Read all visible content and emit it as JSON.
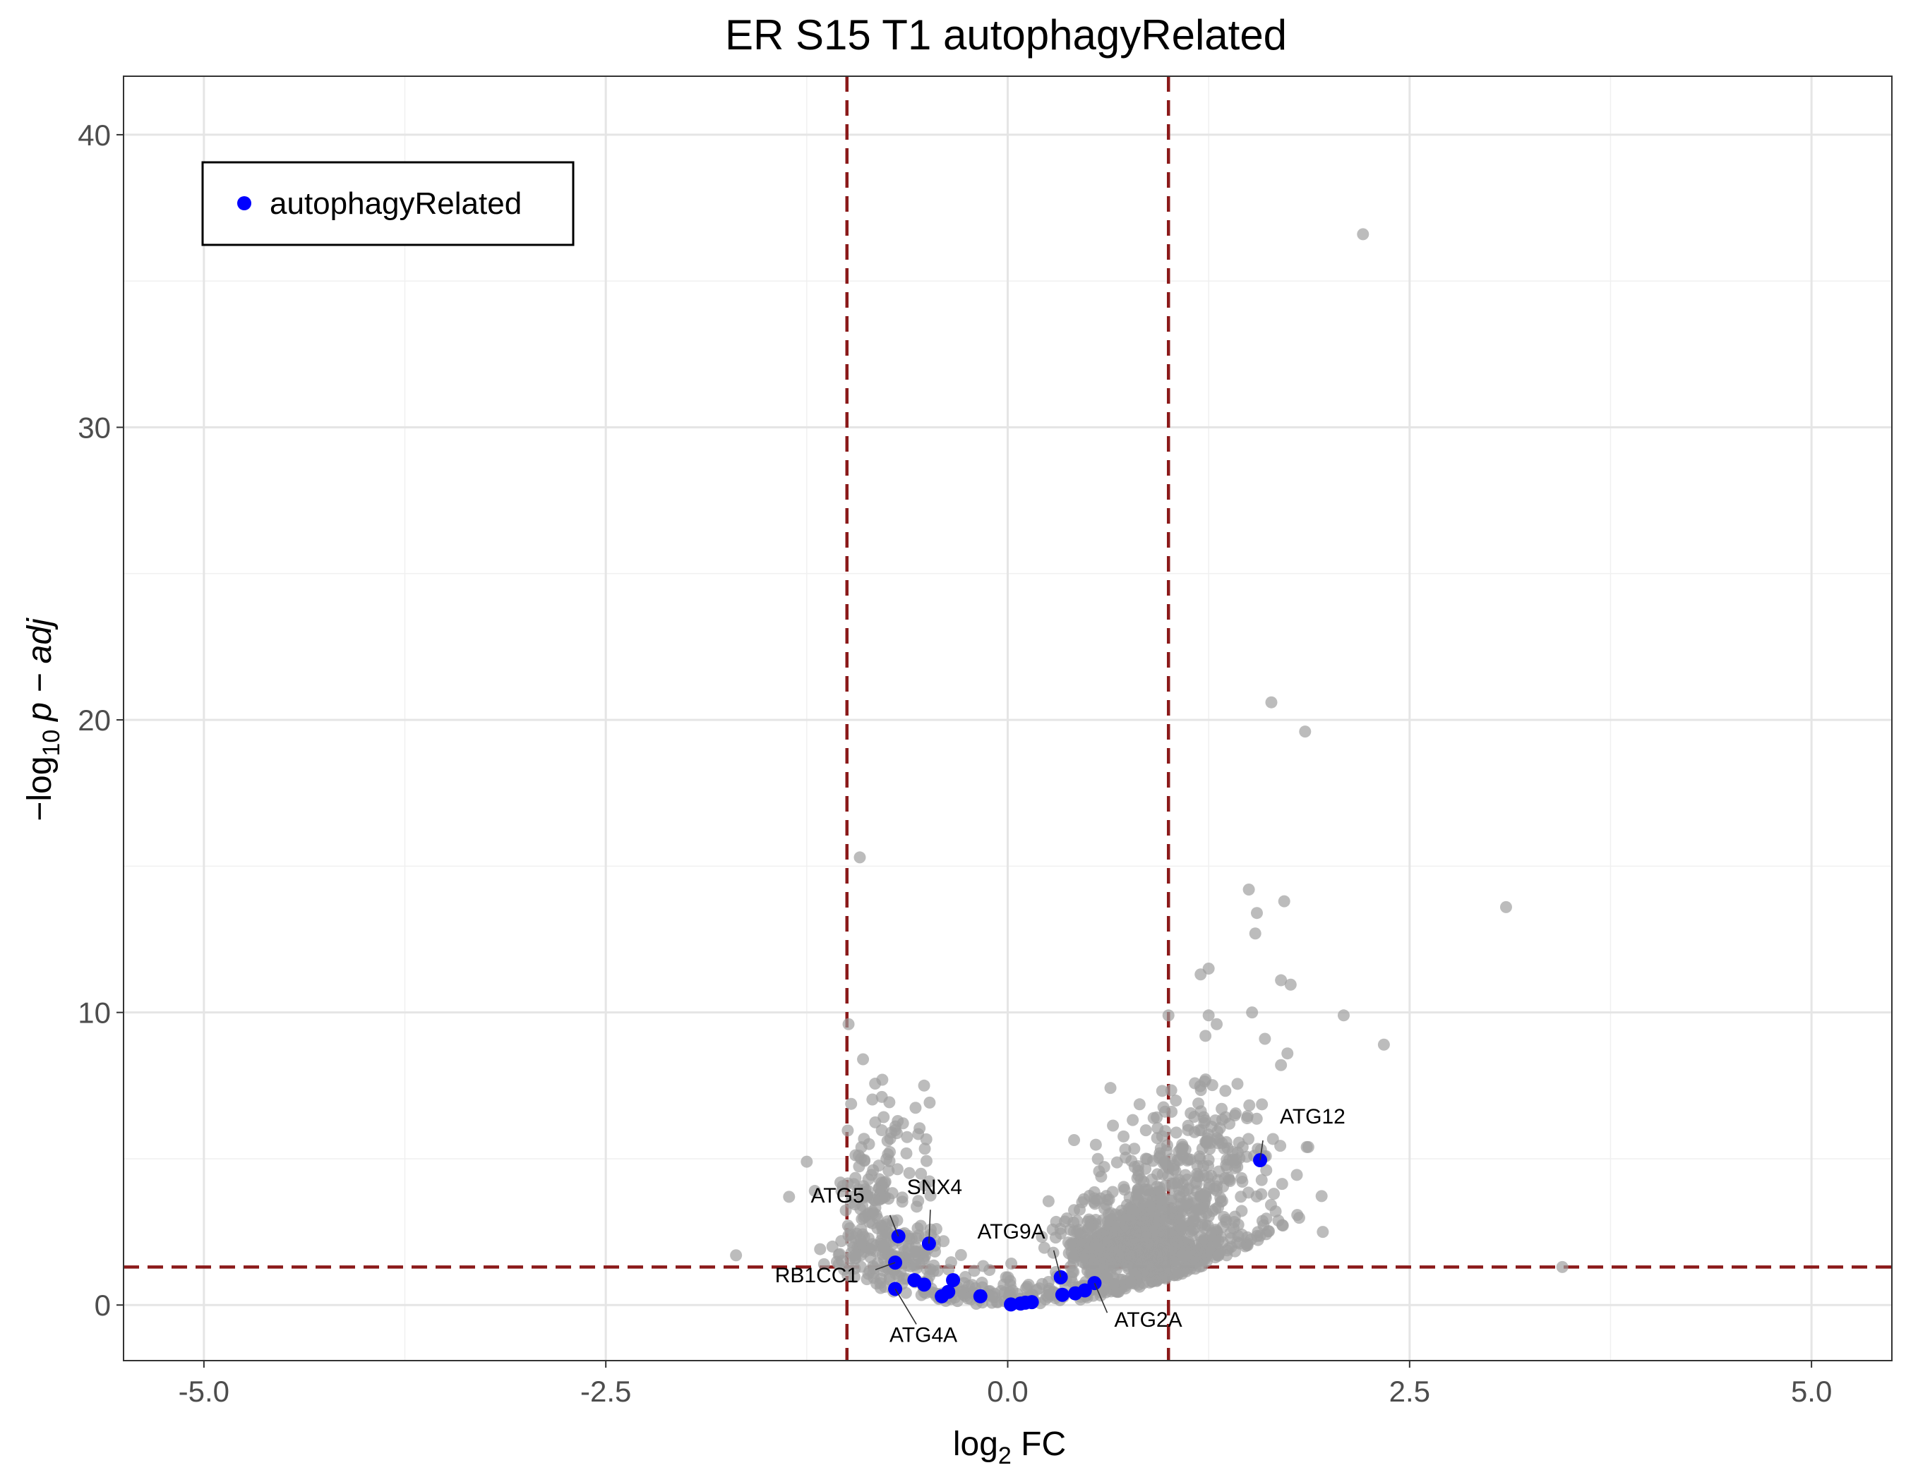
{
  "chart_data": {
    "type": "scatter",
    "title": "ER S15 T1 autophagyRelated",
    "xlabel": {
      "prefix": "log",
      "sub": "2",
      "suffix": " FC"
    },
    "ylabel": {
      "prefix": "−log",
      "sub": "10",
      "suffix": "p − adj"
    },
    "xlim": [
      -5.5,
      5.5
    ],
    "ylim": [
      -1.9,
      42
    ],
    "x_ticks": [
      -5.0,
      -2.5,
      0.0,
      2.5,
      5.0
    ],
    "x_tick_labels": [
      "-5.0",
      "-2.5",
      "0.0",
      "2.5",
      "5.0"
    ],
    "y_ticks": [
      0,
      10,
      20,
      30,
      40
    ],
    "y_tick_labels": [
      "0",
      "10",
      "20",
      "30",
      "40"
    ],
    "grid": true,
    "thresholds": {
      "fc_left": -1,
      "fc_right": 1,
      "padj_neglog10": 1.3,
      "color": "#8b1a1a"
    },
    "legend": {
      "position": "top-left",
      "entries": [
        "autophagyRelated"
      ]
    },
    "colors": {
      "background_genes": "#a0a0a0",
      "highlight": "#0000ff"
    },
    "background_outliers": [
      [
        2.21,
        36.6
      ],
      [
        1.64,
        20.6
      ],
      [
        1.85,
        19.6
      ],
      [
        -0.92,
        15.3
      ],
      [
        3.1,
        13.6
      ],
      [
        1.5,
        14.2
      ],
      [
        1.72,
        13.8
      ],
      [
        1.55,
        13.4
      ],
      [
        1.54,
        12.7
      ],
      [
        1.25,
        11.5
      ],
      [
        1.2,
        11.3
      ],
      [
        1.7,
        11.1
      ],
      [
        1.76,
        10.95
      ],
      [
        2.09,
        9.9
      ],
      [
        1.52,
        10.0
      ],
      [
        1.0,
        9.9
      ],
      [
        -0.99,
        9.6
      ],
      [
        1.25,
        9.9
      ],
      [
        1.3,
        9.6
      ],
      [
        1.23,
        9.2
      ],
      [
        2.34,
        8.9
      ],
      [
        1.6,
        9.1
      ],
      [
        -0.9,
        8.4
      ],
      [
        1.74,
        8.6
      ],
      [
        -0.78,
        7.7
      ],
      [
        -0.52,
        7.5
      ],
      [
        1.7,
        8.2
      ],
      [
        3.45,
        1.3
      ],
      [
        -1.69,
        1.7
      ],
      [
        1.96,
        2.5
      ],
      [
        -1.25,
        4.9
      ],
      [
        -1.36,
        3.7
      ],
      [
        1.86,
        5.4
      ],
      [
        1.87,
        5.4
      ],
      [
        -1.2,
        3.9
      ]
    ],
    "background_cloud": {
      "n": 1500,
      "seed": 7,
      "clusters": [
        {
          "w": 0.1,
          "x": [
            -0.72,
            0.16
          ],
          "y": [
            1.6,
            0.6
          ]
        },
        {
          "w": 0.06,
          "x": [
            -0.85,
            0.12
          ],
          "y": [
            3.4,
            1.1
          ]
        },
        {
          "w": 0.03,
          "x": [
            -0.75,
            0.14
          ],
          "y": [
            5.2,
            1.0
          ]
        },
        {
          "w": 0.04,
          "x": [
            -0.25,
            0.18
          ],
          "y": [
            0.45,
            0.35
          ]
        },
        {
          "w": 0.05,
          "x": [
            0.22,
            0.22
          ],
          "y": [
            0.45,
            0.4
          ]
        },
        {
          "w": 0.48,
          "x": [
            0.8,
            0.24
          ],
          "y": [
            2.0,
            0.9
          ]
        },
        {
          "w": 0.12,
          "x": [
            1.02,
            0.22
          ],
          "y": [
            3.6,
            1.2
          ]
        },
        {
          "w": 0.06,
          "x": [
            1.2,
            0.2
          ],
          "y": [
            5.8,
            1.3
          ]
        },
        {
          "w": 0.06,
          "x": [
            1.4,
            0.22
          ],
          "y": [
            3.2,
            1.6
          ]
        }
      ]
    },
    "highlight_points": [
      {
        "x": 1.57,
        "y": 4.95,
        "label": "ATG12"
      },
      {
        "x": -0.68,
        "y": 2.35,
        "label": "ATG5"
      },
      {
        "x": -0.49,
        "y": 2.1,
        "label": "SNX4"
      },
      {
        "x": -0.7,
        "y": 1.45,
        "label": "RB1CC1"
      },
      {
        "x": -0.7,
        "y": 0.55,
        "label": "ATG4A"
      },
      {
        "x": 0.33,
        "y": 0.95,
        "label": "ATG9A"
      },
      {
        "x": 0.54,
        "y": 0.75,
        "label": "ATG2A"
      },
      {
        "x": -0.58,
        "y": 0.85,
        "label": ""
      },
      {
        "x": -0.52,
        "y": 0.7,
        "label": ""
      },
      {
        "x": -0.34,
        "y": 0.85,
        "label": ""
      },
      {
        "x": -0.37,
        "y": 0.45,
        "label": ""
      },
      {
        "x": -0.41,
        "y": 0.3,
        "label": ""
      },
      {
        "x": -0.17,
        "y": 0.3,
        "label": ""
      },
      {
        "x": 0.02,
        "y": 0.02,
        "label": ""
      },
      {
        "x": 0.08,
        "y": 0.05,
        "label": ""
      },
      {
        "x": 0.15,
        "y": 0.1,
        "label": ""
      },
      {
        "x": 0.11,
        "y": 0.08,
        "label": ""
      },
      {
        "x": 0.34,
        "y": 0.35,
        "label": ""
      },
      {
        "x": 0.42,
        "y": 0.4,
        "label": ""
      },
      {
        "x": 0.48,
        "y": 0.5,
        "label": ""
      }
    ],
    "labels": [
      {
        "text": "ATG12",
        "point": 0
      },
      {
        "text": "ATG5",
        "point": 1
      },
      {
        "text": "SNX4",
        "point": 2
      },
      {
        "text": "RB1CC1",
        "point": 3
      },
      {
        "text": "ATG4A",
        "point": 4
      },
      {
        "text": "ATG9A",
        "point": 5
      },
      {
        "text": "ATG2A",
        "point": 6
      }
    ]
  }
}
